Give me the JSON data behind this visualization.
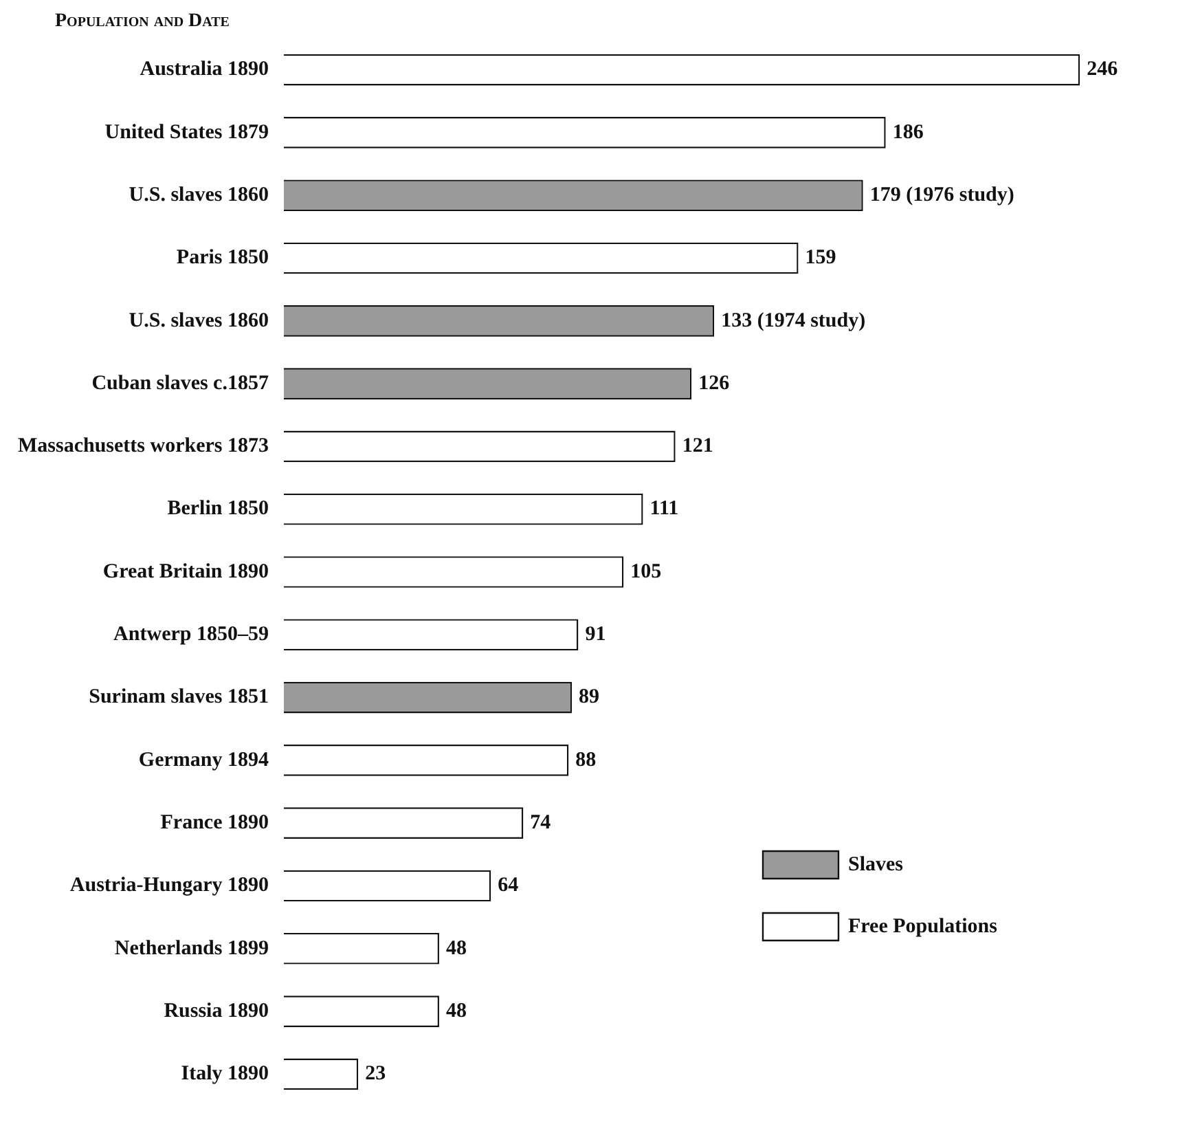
{
  "chart_data": {
    "type": "bar",
    "orientation": "horizontal",
    "stacked": true,
    "ylabel": "Population and Date",
    "legend": "bottom right",
    "data_labels": true,
    "categories": [
      "Australia 1890",
      "United States 1879",
      "U.S. slaves 1860",
      "Paris 1850",
      "U.S. slaves 1860",
      "Cuban slaves c.1857",
      "Massachusetts workers 1873",
      "Berlin 1850",
      "Great Britain 1890",
      "Antwerp 1850–59",
      "Surinam slaves 1851",
      "Germany 1894",
      "France 1890",
      "Austria-Hungary 1890",
      "Netherlands 1899",
      "Russia 1890",
      "Italy 1890"
    ],
    "series": [
      {
        "name": "Slaves",
        "color": "#9a9a9a",
        "values": [
          null,
          null,
          179,
          null,
          133,
          126,
          null,
          null,
          null,
          null,
          89,
          null,
          null,
          null,
          null,
          null,
          null
        ],
        "value_labels": [
          null,
          null,
          "179 (1976 study)",
          null,
          "133 (1974 study)",
          "126",
          null,
          null,
          null,
          null,
          "89",
          null,
          null,
          null,
          null,
          null,
          null
        ]
      },
      {
        "name": "Free Populations",
        "color": "#ffffff",
        "values": [
          246,
          186,
          null,
          159,
          null,
          null,
          121,
          111,
          105,
          91,
          null,
          88,
          74,
          64,
          48,
          48,
          23
        ],
        "value_labels": [
          "246",
          "186",
          null,
          "159",
          null,
          null,
          "121",
          "111",
          "105",
          "91",
          null,
          "88",
          "74",
          "64",
          "48",
          "48",
          "23"
        ]
      }
    ]
  }
}
